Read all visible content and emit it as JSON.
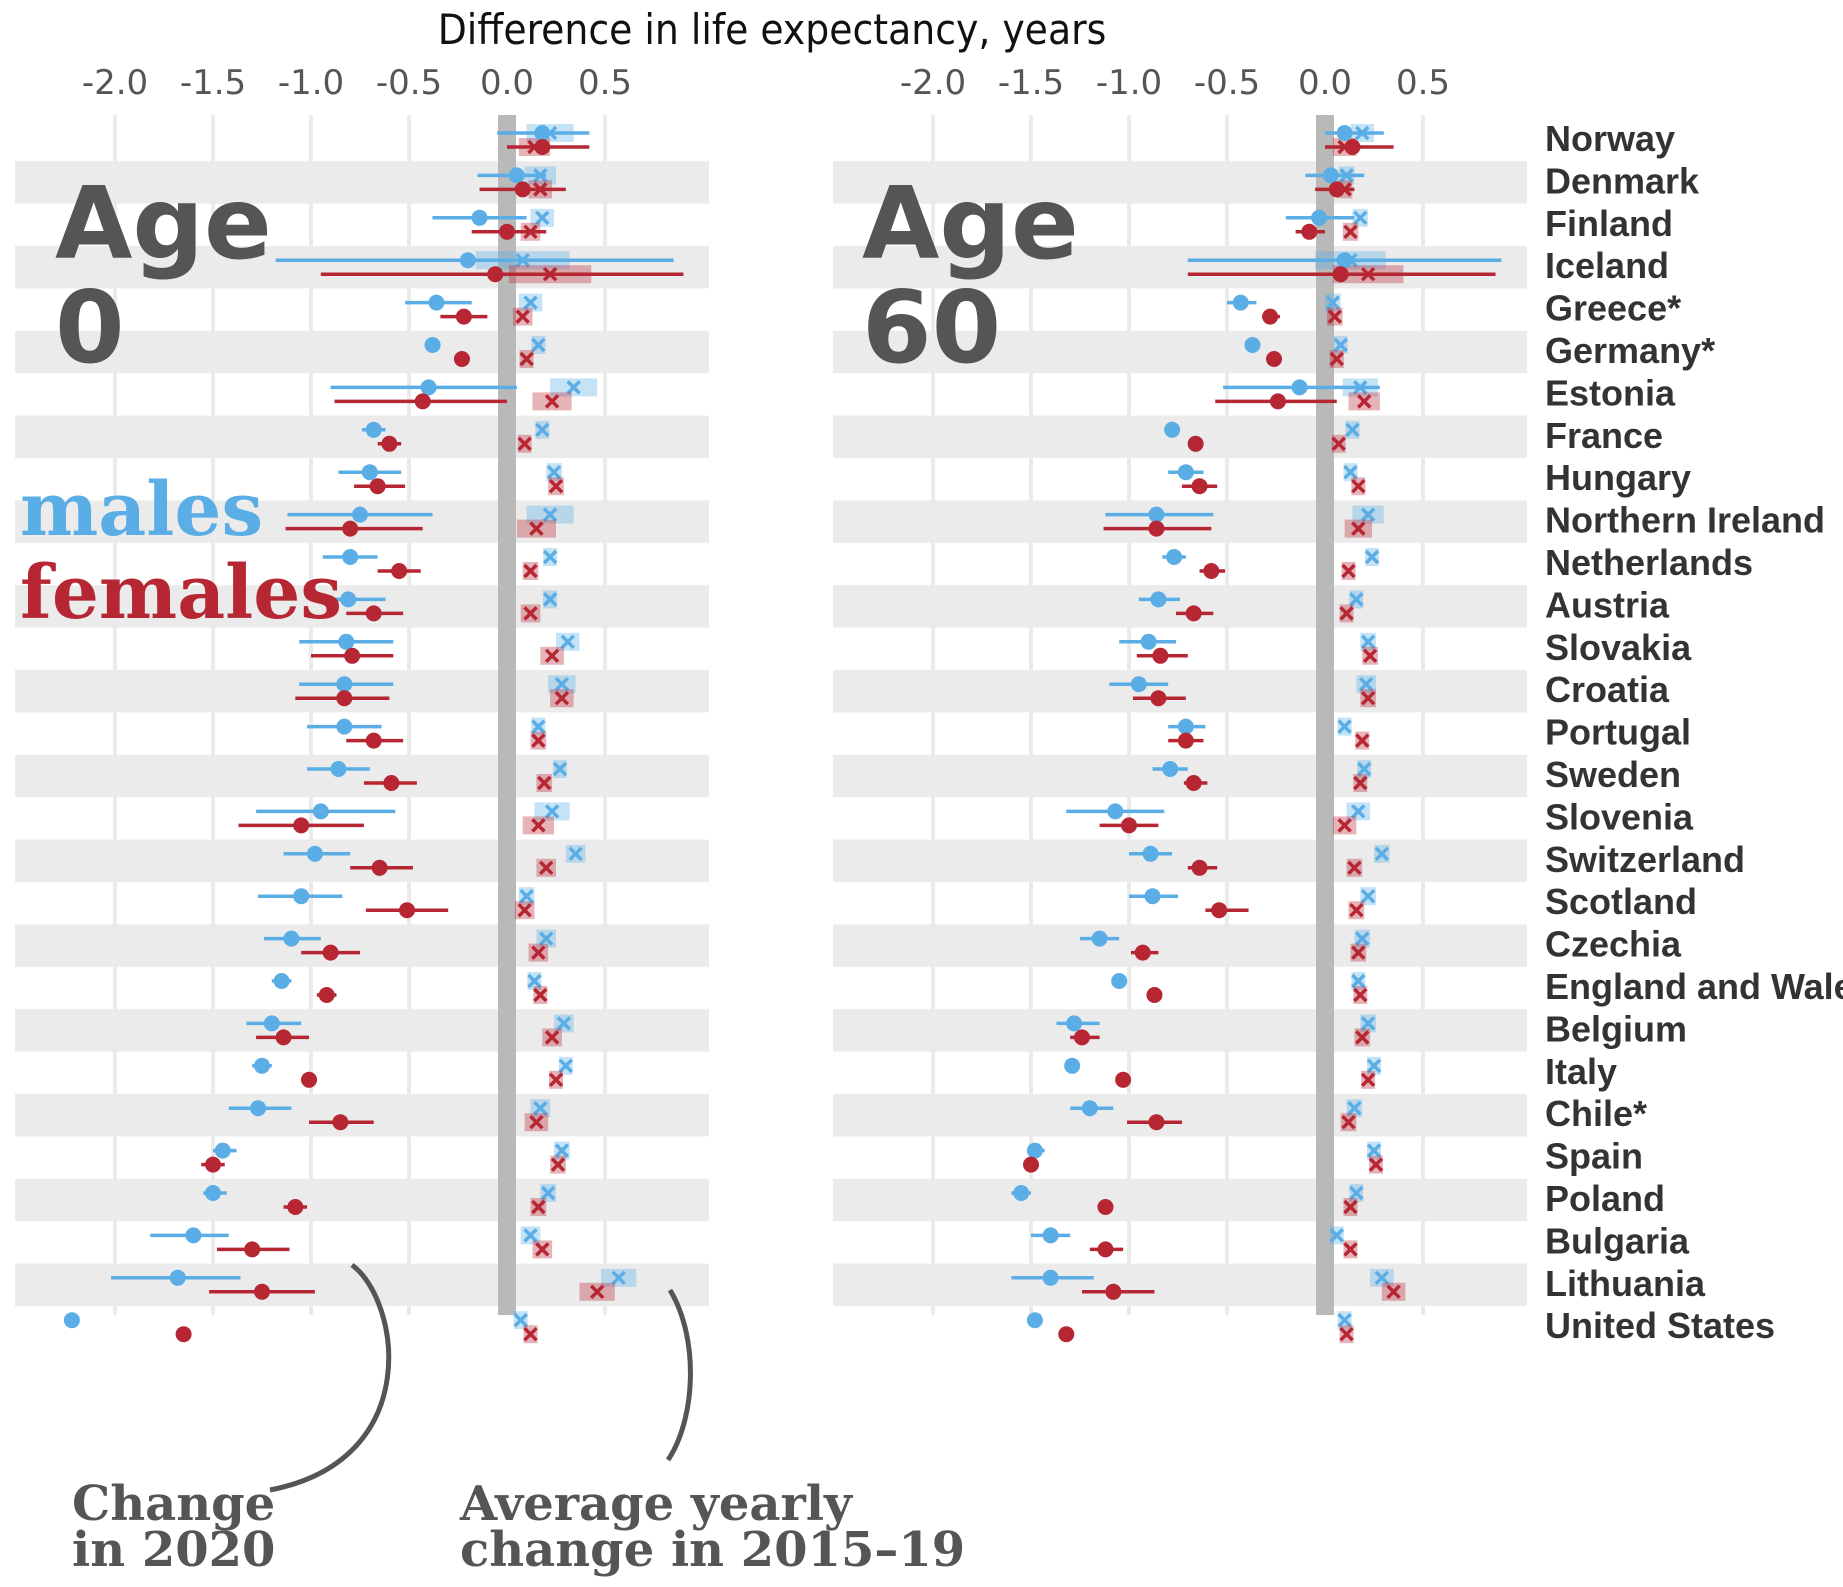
{
  "chart_data": {
    "type": "dot-interval",
    "title": "Difference in life expectancy, years",
    "x_ticks": [
      "-2.0",
      "-1.5",
      "-1.0",
      "-0.5",
      "0.0",
      "0.5"
    ],
    "xlim": [
      -2.5,
      1.0
    ],
    "grid": true,
    "colors": {
      "males": "#5aaee5",
      "females": "#b62633",
      "zero_band": "#b9b9b9",
      "row_band": "#ebebeb",
      "text": "#555555"
    },
    "legend": {
      "males": "males",
      "females": "females"
    },
    "annotations": {
      "change_2020": [
        "Change",
        "in 2020"
      ],
      "avg_2015_19": [
        "Average yearly",
        "change in 2015–19"
      ]
    },
    "countries": [
      "Norway",
      "Denmark",
      "Finland",
      "Iceland",
      "Greece*",
      "Germany*",
      "Estonia",
      "France",
      "Hungary",
      "Northern Ireland",
      "Netherlands",
      "Austria",
      "Slovakia",
      "Croatia",
      "Portugal",
      "Sweden",
      "Slovenia",
      "Switzerland",
      "Scotland",
      "Czechia",
      "England and Wales",
      "Belgium",
      "Italy",
      "Chile*",
      "Spain",
      "Poland",
      "Bulgaria",
      "Lithuania",
      "United States"
    ],
    "panels": [
      {
        "label_line1": "Age",
        "label_line2": "0",
        "male_2020": [
          [
            0.18,
            -0.05,
            0.42
          ],
          [
            0.05,
            -0.15,
            0.2
          ],
          [
            -0.14,
            -0.38,
            0.1
          ],
          [
            -0.2,
            -1.18,
            0.85
          ],
          [
            -0.36,
            -0.52,
            -0.18
          ],
          [
            -0.38,
            -0.42,
            -0.34
          ],
          [
            -0.4,
            -0.9,
            0.05
          ],
          [
            -0.68,
            -0.74,
            -0.62
          ],
          [
            -0.7,
            -0.86,
            -0.54
          ],
          [
            -0.75,
            -1.12,
            -0.38
          ],
          [
            -0.8,
            -0.94,
            -0.66
          ],
          [
            -0.81,
            -1.0,
            -0.62
          ],
          [
            -0.82,
            -1.06,
            -0.58
          ],
          [
            -0.83,
            -1.06,
            -0.58
          ],
          [
            -0.83,
            -1.02,
            -0.64
          ],
          [
            -0.86,
            -1.02,
            -0.7
          ],
          [
            -0.95,
            -1.28,
            -0.57
          ],
          [
            -0.98,
            -1.14,
            -0.8
          ],
          [
            -1.05,
            -1.27,
            -0.84
          ],
          [
            -1.1,
            -1.24,
            -0.95
          ],
          [
            -1.15,
            -1.2,
            -1.1
          ],
          [
            -1.2,
            -1.33,
            -1.05
          ],
          [
            -1.25,
            -1.3,
            -1.2
          ],
          [
            -1.27,
            -1.42,
            -1.1
          ],
          [
            -1.45,
            -1.5,
            -1.38
          ],
          [
            -1.5,
            -1.55,
            -1.43
          ],
          [
            -1.6,
            -1.82,
            -1.42
          ],
          [
            -1.68,
            -2.02,
            -1.36
          ],
          [
            -2.22,
            -2.22,
            -2.22
          ]
        ],
        "female_2020": [
          [
            0.18,
            0.0,
            0.42
          ],
          [
            0.08,
            -0.14,
            0.3
          ],
          [
            0.0,
            -0.18,
            0.2
          ],
          [
            -0.06,
            -0.95,
            0.9
          ],
          [
            -0.22,
            -0.34,
            -0.1
          ],
          [
            -0.23,
            -0.27,
            -0.19
          ],
          [
            -0.43,
            -0.88,
            0.0
          ],
          [
            -0.6,
            -0.66,
            -0.54
          ],
          [
            -0.66,
            -0.78,
            -0.52
          ],
          [
            -0.8,
            -1.13,
            -0.43
          ],
          [
            -0.55,
            -0.66,
            -0.44
          ],
          [
            -0.68,
            -0.82,
            -0.53
          ],
          [
            -0.79,
            -1.0,
            -0.58
          ],
          [
            -0.83,
            -1.08,
            -0.6
          ],
          [
            -0.68,
            -0.82,
            -0.53
          ],
          [
            -0.59,
            -0.73,
            -0.46
          ],
          [
            -1.05,
            -1.37,
            -0.73
          ],
          [
            -0.65,
            -0.8,
            -0.48
          ],
          [
            -0.51,
            -0.72,
            -0.3
          ],
          [
            -0.9,
            -1.05,
            -0.75
          ],
          [
            -0.92,
            -0.97,
            -0.87
          ],
          [
            -1.14,
            -1.28,
            -1.01
          ],
          [
            -1.01,
            -1.05,
            -0.97
          ],
          [
            -0.85,
            -1.01,
            -0.68
          ],
          [
            -1.5,
            -1.56,
            -1.44
          ],
          [
            -1.08,
            -1.14,
            -1.02
          ],
          [
            -1.3,
            -1.48,
            -1.11
          ],
          [
            -1.25,
            -1.52,
            -0.98
          ],
          [
            -1.65,
            -1.65,
            -1.65
          ]
        ],
        "male_avg": [
          [
            0.22,
            0.12
          ],
          [
            0.17,
            0.08
          ],
          [
            0.18,
            0.06
          ],
          [
            0.08,
            0.24
          ],
          [
            0.12,
            0.06
          ],
          [
            0.16,
            0.03
          ],
          [
            0.34,
            0.12
          ],
          [
            0.18,
            0.03
          ],
          [
            0.24,
            0.04
          ],
          [
            0.22,
            0.12
          ],
          [
            0.22,
            0.03
          ],
          [
            0.22,
            0.03
          ],
          [
            0.31,
            0.06
          ],
          [
            0.28,
            0.07
          ],
          [
            0.16,
            0.03
          ],
          [
            0.27,
            0.03
          ],
          [
            0.23,
            0.09
          ],
          [
            0.35,
            0.05
          ],
          [
            0.1,
            0.04
          ],
          [
            0.2,
            0.05
          ],
          [
            0.14,
            0.03
          ],
          [
            0.29,
            0.05
          ],
          [
            0.3,
            0.03
          ],
          [
            0.17,
            0.05
          ],
          [
            0.28,
            0.04
          ],
          [
            0.21,
            0.04
          ],
          [
            0.12,
            0.05
          ],
          [
            0.57,
            0.09
          ],
          [
            0.07,
            0.02
          ]
        ],
        "female_avg": [
          [
            0.14,
            0.08
          ],
          [
            0.17,
            0.06
          ],
          [
            0.12,
            0.05
          ],
          [
            0.22,
            0.21
          ],
          [
            0.08,
            0.05
          ],
          [
            0.1,
            0.03
          ],
          [
            0.23,
            0.1
          ],
          [
            0.09,
            0.03
          ],
          [
            0.25,
            0.04
          ],
          [
            0.15,
            0.1
          ],
          [
            0.12,
            0.04
          ],
          [
            0.12,
            0.05
          ],
          [
            0.23,
            0.06
          ],
          [
            0.28,
            0.06
          ],
          [
            0.16,
            0.04
          ],
          [
            0.19,
            0.04
          ],
          [
            0.16,
            0.08
          ],
          [
            0.2,
            0.05
          ],
          [
            0.09,
            0.05
          ],
          [
            0.16,
            0.05
          ],
          [
            0.17,
            0.03
          ],
          [
            0.23,
            0.05
          ],
          [
            0.25,
            0.03
          ],
          [
            0.15,
            0.06
          ],
          [
            0.26,
            0.04
          ],
          [
            0.16,
            0.04
          ],
          [
            0.18,
            0.05
          ],
          [
            0.46,
            0.09
          ],
          [
            0.12,
            0.02
          ]
        ]
      },
      {
        "label_line1": "Age",
        "label_line2": "60",
        "male_2020": [
          [
            0.1,
            0.0,
            0.3
          ],
          [
            0.03,
            -0.1,
            0.2
          ],
          [
            -0.03,
            -0.2,
            0.15
          ],
          [
            0.1,
            -0.7,
            0.9
          ],
          [
            -0.43,
            -0.5,
            -0.35
          ],
          [
            -0.37,
            -0.4,
            -0.34
          ],
          [
            -0.13,
            -0.52,
            0.28
          ],
          [
            -0.78,
            -0.81,
            -0.75
          ],
          [
            -0.71,
            -0.8,
            -0.62
          ],
          [
            -0.86,
            -1.12,
            -0.57
          ],
          [
            -0.77,
            -0.83,
            -0.71
          ],
          [
            -0.85,
            -0.95,
            -0.74
          ],
          [
            -0.9,
            -1.05,
            -0.76
          ],
          [
            -0.95,
            -1.1,
            -0.8
          ],
          [
            -0.71,
            -0.8,
            -0.61
          ],
          [
            -0.79,
            -0.88,
            -0.7
          ],
          [
            -1.07,
            -1.32,
            -0.82
          ],
          [
            -0.89,
            -1.0,
            -0.78
          ],
          [
            -0.88,
            -1.0,
            -0.75
          ],
          [
            -1.15,
            -1.25,
            -1.05
          ],
          [
            -1.05,
            -1.08,
            -1.02
          ],
          [
            -1.28,
            -1.37,
            -1.15
          ],
          [
            -1.29,
            -1.32,
            -1.26
          ],
          [
            -1.2,
            -1.3,
            -1.08
          ],
          [
            -1.48,
            -1.52,
            -1.43
          ],
          [
            -1.55,
            -1.6,
            -1.5
          ],
          [
            -1.4,
            -1.5,
            -1.3
          ],
          [
            -1.4,
            -1.6,
            -1.18
          ],
          [
            -1.48,
            -1.48,
            -1.48
          ]
        ],
        "female_2020": [
          [
            0.14,
            0.0,
            0.35
          ],
          [
            0.06,
            -0.05,
            0.15
          ],
          [
            -0.08,
            -0.15,
            0.0
          ],
          [
            0.08,
            -0.7,
            0.87
          ],
          [
            -0.28,
            -0.32,
            -0.23
          ],
          [
            -0.26,
            -0.28,
            -0.24
          ],
          [
            -0.24,
            -0.56,
            0.06
          ],
          [
            -0.66,
            -0.68,
            -0.64
          ],
          [
            -0.64,
            -0.73,
            -0.55
          ],
          [
            -0.86,
            -1.13,
            -0.58
          ],
          [
            -0.58,
            -0.64,
            -0.51
          ],
          [
            -0.67,
            -0.76,
            -0.57
          ],
          [
            -0.84,
            -0.96,
            -0.7
          ],
          [
            -0.85,
            -0.98,
            -0.71
          ],
          [
            -0.71,
            -0.8,
            -0.62
          ],
          [
            -0.67,
            -0.72,
            -0.6
          ],
          [
            -1.0,
            -1.15,
            -0.85
          ],
          [
            -0.64,
            -0.7,
            -0.55
          ],
          [
            -0.54,
            -0.61,
            -0.39
          ],
          [
            -0.93,
            -0.99,
            -0.85
          ],
          [
            -0.87,
            -0.9,
            -0.84
          ],
          [
            -1.24,
            -1.3,
            -1.15
          ],
          [
            -1.03,
            -1.05,
            -1.01
          ],
          [
            -0.86,
            -1.01,
            -0.73
          ],
          [
            -1.5,
            -1.53,
            -1.46
          ],
          [
            -1.12,
            -1.16,
            -1.08
          ],
          [
            -1.12,
            -1.2,
            -1.03
          ],
          [
            -1.08,
            -1.24,
            -0.87
          ],
          [
            -1.32,
            -1.32,
            -1.32
          ]
        ],
        "male_avg": [
          [
            0.19,
            0.06
          ],
          [
            0.11,
            0.04
          ],
          [
            0.18,
            0.04
          ],
          [
            0.13,
            0.18
          ],
          [
            0.04,
            0.04
          ],
          [
            0.08,
            0.02
          ],
          [
            0.18,
            0.09
          ],
          [
            0.14,
            0.02
          ],
          [
            0.13,
            0.03
          ],
          [
            0.22,
            0.08
          ],
          [
            0.24,
            0.02
          ],
          [
            0.16,
            0.03
          ],
          [
            0.22,
            0.04
          ],
          [
            0.21,
            0.05
          ],
          [
            0.1,
            0.03
          ],
          [
            0.2,
            0.03
          ],
          [
            0.17,
            0.06
          ],
          [
            0.29,
            0.04
          ],
          [
            0.22,
            0.04
          ],
          [
            0.19,
            0.04
          ],
          [
            0.17,
            0.02
          ],
          [
            0.22,
            0.04
          ],
          [
            0.25,
            0.02
          ],
          [
            0.15,
            0.04
          ],
          [
            0.25,
            0.03
          ],
          [
            0.16,
            0.03
          ],
          [
            0.06,
            0.03
          ],
          [
            0.29,
            0.06
          ],
          [
            0.1,
            0.01
          ]
        ],
        "female_avg": [
          [
            0.1,
            0.06
          ],
          [
            0.1,
            0.04
          ],
          [
            0.13,
            0.04
          ],
          [
            0.22,
            0.18
          ],
          [
            0.05,
            0.04
          ],
          [
            0.06,
            0.02
          ],
          [
            0.2,
            0.08
          ],
          [
            0.07,
            0.02
          ],
          [
            0.17,
            0.03
          ],
          [
            0.17,
            0.07
          ],
          [
            0.12,
            0.03
          ],
          [
            0.11,
            0.03
          ],
          [
            0.23,
            0.04
          ],
          [
            0.22,
            0.04
          ],
          [
            0.19,
            0.03
          ],
          [
            0.18,
            0.03
          ],
          [
            0.1,
            0.06
          ],
          [
            0.15,
            0.04
          ],
          [
            0.16,
            0.04
          ],
          [
            0.17,
            0.04
          ],
          [
            0.18,
            0.02
          ],
          [
            0.19,
            0.04
          ],
          [
            0.22,
            0.02
          ],
          [
            0.12,
            0.04
          ],
          [
            0.26,
            0.03
          ],
          [
            0.13,
            0.03
          ],
          [
            0.13,
            0.03
          ],
          [
            0.35,
            0.06
          ],
          [
            0.11,
            0.01
          ]
        ]
      }
    ]
  }
}
